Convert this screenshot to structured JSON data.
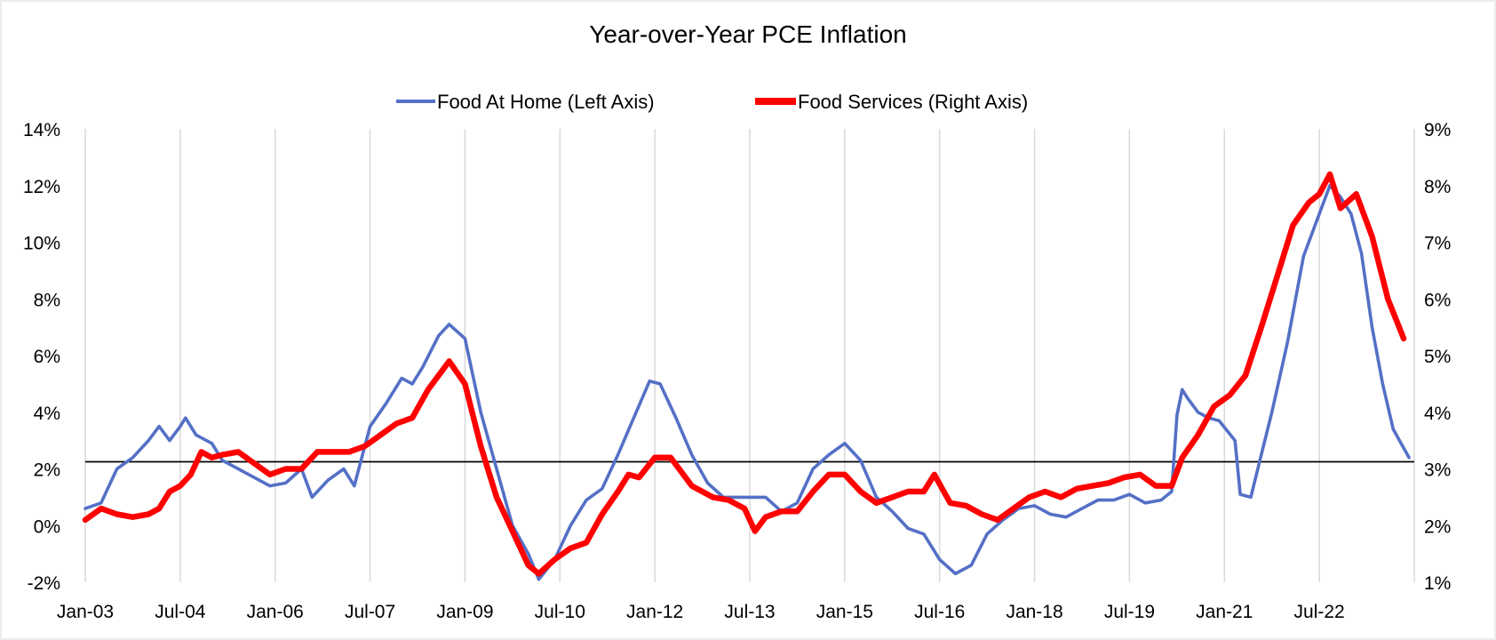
{
  "chart_data": {
    "type": "line",
    "title": "Year-over-Year PCE Inflation",
    "x_tick_labels": [
      "Jan-03",
      "Jul-04",
      "Jan-06",
      "Jul-07",
      "Jan-09",
      "Jul-10",
      "Jan-12",
      "Jul-13",
      "Jan-15",
      "Jul-16",
      "Jan-18",
      "Jul-19",
      "Jan-21",
      "Jul-22"
    ],
    "x_range": [
      "Jan-03",
      "Dec-23"
    ],
    "y_left": {
      "min": -2,
      "max": 14,
      "step": 2,
      "tick_labels": [
        "-2%",
        "0%",
        "2%",
        "4%",
        "6%",
        "8%",
        "10%",
        "12%",
        "14%"
      ]
    },
    "y_right": {
      "min": 1,
      "max": 9,
      "step": 1,
      "tick_labels": [
        "1%",
        "2%",
        "3%",
        "4%",
        "5%",
        "6%",
        "7%",
        "8%",
        "9%"
      ]
    },
    "reference_line": {
      "axis": "left",
      "value": 2.25
    },
    "grid": "vertical",
    "legend_position": "top-center",
    "series": [
      {
        "name": "Food At Home (Left Axis)",
        "axis": "left",
        "color": "#5470c6",
        "points": [
          [
            "2003-01",
            0.6
          ],
          [
            "2003-04",
            0.8
          ],
          [
            "2003-07",
            2.0
          ],
          [
            "2003-10",
            2.4
          ],
          [
            "2004-01",
            3.0
          ],
          [
            "2004-03",
            3.5
          ],
          [
            "2004-05",
            3.0
          ],
          [
            "2004-07",
            3.5
          ],
          [
            "2004-08",
            3.8
          ],
          [
            "2004-10",
            3.2
          ],
          [
            "2005-01",
            2.9
          ],
          [
            "2005-03",
            2.3
          ],
          [
            "2005-06",
            2.0
          ],
          [
            "2005-09",
            1.7
          ],
          [
            "2005-12",
            1.4
          ],
          [
            "2006-03",
            1.5
          ],
          [
            "2006-06",
            2.0
          ],
          [
            "2006-08",
            1.0
          ],
          [
            "2006-11",
            1.6
          ],
          [
            "2007-02",
            2.0
          ],
          [
            "2007-04",
            1.4
          ],
          [
            "2007-07",
            3.5
          ],
          [
            "2007-10",
            4.3
          ],
          [
            "2008-01",
            5.2
          ],
          [
            "2008-03",
            5.0
          ],
          [
            "2008-05",
            5.6
          ],
          [
            "2008-08",
            6.7
          ],
          [
            "2008-10",
            7.1
          ],
          [
            "2009-01",
            6.6
          ],
          [
            "2009-04",
            4.0
          ],
          [
            "2009-07",
            2.0
          ],
          [
            "2009-10",
            0.0
          ],
          [
            "2010-01",
            -1.0
          ],
          [
            "2010-03",
            -1.9
          ],
          [
            "2010-06",
            -1.2
          ],
          [
            "2010-09",
            0.0
          ],
          [
            "2010-12",
            0.9
          ],
          [
            "2011-03",
            1.3
          ],
          [
            "2011-06",
            2.5
          ],
          [
            "2011-09",
            3.8
          ],
          [
            "2011-12",
            5.1
          ],
          [
            "2012-02",
            5.0
          ],
          [
            "2012-05",
            3.8
          ],
          [
            "2012-08",
            2.5
          ],
          [
            "2012-11",
            1.5
          ],
          [
            "2013-02",
            1.0
          ],
          [
            "2013-06",
            1.0
          ],
          [
            "2013-10",
            1.0
          ],
          [
            "2014-01",
            0.5
          ],
          [
            "2014-04",
            0.8
          ],
          [
            "2014-07",
            2.0
          ],
          [
            "2014-10",
            2.5
          ],
          [
            "2015-01",
            2.9
          ],
          [
            "2015-04",
            2.3
          ],
          [
            "2015-07",
            1.0
          ],
          [
            "2015-10",
            0.5
          ],
          [
            "2016-01",
            -0.1
          ],
          [
            "2016-04",
            -0.3
          ],
          [
            "2016-07",
            -1.2
          ],
          [
            "2016-10",
            -1.7
          ],
          [
            "2017-01",
            -1.4
          ],
          [
            "2017-04",
            -0.3
          ],
          [
            "2017-07",
            0.2
          ],
          [
            "2017-10",
            0.6
          ],
          [
            "2018-01",
            0.7
          ],
          [
            "2018-04",
            0.4
          ],
          [
            "2018-07",
            0.3
          ],
          [
            "2018-10",
            0.6
          ],
          [
            "2019-01",
            0.9
          ],
          [
            "2019-04",
            0.9
          ],
          [
            "2019-07",
            1.1
          ],
          [
            "2019-10",
            0.8
          ],
          [
            "2020-01",
            0.9
          ],
          [
            "2020-03",
            1.2
          ],
          [
            "2020-04",
            3.9
          ],
          [
            "2020-05",
            4.8
          ],
          [
            "2020-06",
            4.5
          ],
          [
            "2020-08",
            4.0
          ],
          [
            "2020-10",
            3.8
          ],
          [
            "2020-12",
            3.7
          ],
          [
            "2021-03",
            3.0
          ],
          [
            "2021-04",
            1.1
          ],
          [
            "2021-06",
            1.0
          ],
          [
            "2021-08",
            2.5
          ],
          [
            "2021-10",
            4.0
          ],
          [
            "2022-01",
            6.5
          ],
          [
            "2022-04",
            9.5
          ],
          [
            "2022-07",
            11.0
          ],
          [
            "2022-09",
            12.0
          ],
          [
            "2022-11",
            11.6
          ],
          [
            "2023-01",
            11.0
          ],
          [
            "2023-03",
            9.6
          ],
          [
            "2023-05",
            7.0
          ],
          [
            "2023-07",
            5.0
          ],
          [
            "2023-09",
            3.4
          ],
          [
            "2023-12",
            2.4
          ]
        ]
      },
      {
        "name": "Food Services (Right Axis)",
        "axis": "right",
        "color": "#ff0000",
        "points": [
          [
            "2003-01",
            2.1
          ],
          [
            "2003-04",
            2.3
          ],
          [
            "2003-07",
            2.2
          ],
          [
            "2003-10",
            2.15
          ],
          [
            "2004-01",
            2.2
          ],
          [
            "2004-03",
            2.3
          ],
          [
            "2004-05",
            2.6
          ],
          [
            "2004-07",
            2.7
          ],
          [
            "2004-09",
            2.9
          ],
          [
            "2004-11",
            3.3
          ],
          [
            "2005-01",
            3.2
          ],
          [
            "2005-03",
            3.25
          ],
          [
            "2005-06",
            3.3
          ],
          [
            "2005-09",
            3.1
          ],
          [
            "2005-12",
            2.9
          ],
          [
            "2006-03",
            3.0
          ],
          [
            "2006-06",
            3.0
          ],
          [
            "2006-09",
            3.3
          ],
          [
            "2006-12",
            3.3
          ],
          [
            "2007-03",
            3.3
          ],
          [
            "2007-06",
            3.4
          ],
          [
            "2007-09",
            3.6
          ],
          [
            "2007-12",
            3.8
          ],
          [
            "2008-03",
            3.9
          ],
          [
            "2008-06",
            4.4
          ],
          [
            "2008-10",
            4.9
          ],
          [
            "2009-01",
            4.5
          ],
          [
            "2009-04",
            3.4
          ],
          [
            "2009-07",
            2.5
          ],
          [
            "2009-10",
            1.9
          ],
          [
            "2010-01",
            1.3
          ],
          [
            "2010-03",
            1.15
          ],
          [
            "2010-06",
            1.4
          ],
          [
            "2010-09",
            1.6
          ],
          [
            "2010-12",
            1.7
          ],
          [
            "2011-03",
            2.2
          ],
          [
            "2011-06",
            2.6
          ],
          [
            "2011-08",
            2.9
          ],
          [
            "2011-10",
            2.85
          ],
          [
            "2012-01",
            3.2
          ],
          [
            "2012-04",
            3.2
          ],
          [
            "2012-08",
            2.7
          ],
          [
            "2012-12",
            2.5
          ],
          [
            "2013-03",
            2.45
          ],
          [
            "2013-06",
            2.3
          ],
          [
            "2013-08",
            1.9
          ],
          [
            "2013-10",
            2.15
          ],
          [
            "2014-01",
            2.25
          ],
          [
            "2014-04",
            2.25
          ],
          [
            "2014-07",
            2.6
          ],
          [
            "2014-10",
            2.9
          ],
          [
            "2015-01",
            2.9
          ],
          [
            "2015-04",
            2.6
          ],
          [
            "2015-07",
            2.4
          ],
          [
            "2015-10",
            2.5
          ],
          [
            "2016-01",
            2.6
          ],
          [
            "2016-04",
            2.6
          ],
          [
            "2016-06",
            2.9
          ],
          [
            "2016-09",
            2.4
          ],
          [
            "2016-12",
            2.35
          ],
          [
            "2017-03",
            2.2
          ],
          [
            "2017-06",
            2.1
          ],
          [
            "2017-09",
            2.3
          ],
          [
            "2017-12",
            2.5
          ],
          [
            "2018-03",
            2.6
          ],
          [
            "2018-06",
            2.5
          ],
          [
            "2018-09",
            2.65
          ],
          [
            "2018-12",
            2.7
          ],
          [
            "2019-03",
            2.75
          ],
          [
            "2019-06",
            2.85
          ],
          [
            "2019-09",
            2.9
          ],
          [
            "2019-12",
            2.7
          ],
          [
            "2020-03",
            2.7
          ],
          [
            "2020-05",
            3.2
          ],
          [
            "2020-08",
            3.6
          ],
          [
            "2020-11",
            4.1
          ],
          [
            "2021-02",
            4.3
          ],
          [
            "2021-05",
            4.65
          ],
          [
            "2021-08",
            5.5
          ],
          [
            "2021-11",
            6.4
          ],
          [
            "2022-02",
            7.3
          ],
          [
            "2022-05",
            7.7
          ],
          [
            "2022-07",
            7.85
          ],
          [
            "2022-09",
            8.2
          ],
          [
            "2022-11",
            7.6
          ],
          [
            "2023-02",
            7.85
          ],
          [
            "2023-05",
            7.1
          ],
          [
            "2023-08",
            6.0
          ],
          [
            "2023-11",
            5.3
          ]
        ]
      }
    ]
  }
}
